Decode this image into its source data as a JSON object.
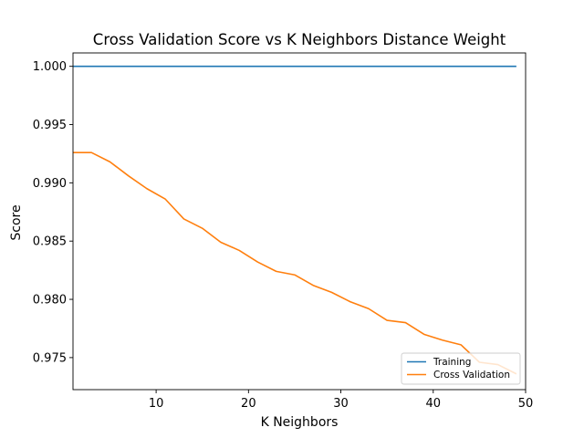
{
  "chart_data": {
    "type": "line",
    "title": "Cross Validation Score vs K Neighbors Distance Weight",
    "xlabel": "K Neighbors",
    "ylabel": "Score",
    "xlim": [
      1,
      50
    ],
    "ylim": [
      0.97225,
      1.00115
    ],
    "xticks": [
      10,
      20,
      30,
      40,
      50
    ],
    "yticks": [
      0.975,
      0.98,
      0.985,
      0.99,
      0.995,
      1.0
    ],
    "ytick_format": 3,
    "grid": false,
    "legend": "lower-right",
    "series": [
      {
        "name": "Training",
        "color": "#1f77b4",
        "x": [
          1,
          3,
          5,
          7,
          9,
          11,
          13,
          15,
          17,
          19,
          21,
          23,
          25,
          27,
          29,
          31,
          33,
          35,
          37,
          39,
          41,
          43,
          45,
          47,
          49
        ],
        "y": [
          1.0,
          1.0,
          1.0,
          1.0,
          1.0,
          1.0,
          1.0,
          1.0,
          1.0,
          1.0,
          1.0,
          1.0,
          1.0,
          1.0,
          1.0,
          1.0,
          1.0,
          1.0,
          1.0,
          1.0,
          1.0,
          1.0,
          1.0,
          1.0,
          1.0
        ]
      },
      {
        "name": "Cross Validation",
        "color": "#ff7f0e",
        "x": [
          1,
          3,
          5,
          7,
          9,
          11,
          13,
          15,
          17,
          19,
          21,
          23,
          25,
          27,
          29,
          31,
          33,
          35,
          37,
          39,
          41,
          43,
          45,
          47,
          49
        ],
        "y": [
          0.9926,
          0.9926,
          0.9918,
          0.9906,
          0.9895,
          0.9886,
          0.9869,
          0.9861,
          0.9849,
          0.9842,
          0.9832,
          0.9824,
          0.9821,
          0.9812,
          0.9806,
          0.9798,
          0.9792,
          0.9782,
          0.978,
          0.977,
          0.9765,
          0.9761,
          0.9746,
          0.9744,
          0.9736
        ]
      }
    ]
  }
}
